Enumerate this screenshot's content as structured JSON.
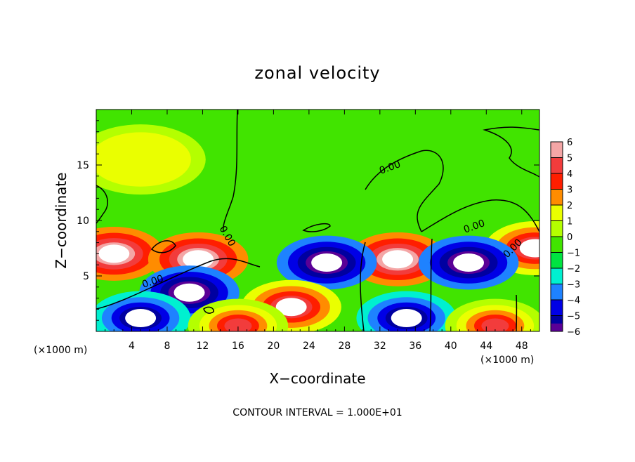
{
  "chart_data": {
    "type": "heatmap",
    "title": "zonal velocity",
    "xlabel": "X−coordinate",
    "ylabel": "Z−coordinate",
    "x_unit": "(×1000 m)",
    "y_unit": "(×1000 m)",
    "xlim": [
      0,
      50
    ],
    "ylim": [
      0,
      20
    ],
    "x_ticks": [
      4,
      8,
      12,
      16,
      20,
      24,
      28,
      32,
      36,
      40,
      44,
      48
    ],
    "y_ticks": [
      5,
      10,
      15
    ],
    "x_tick_labels": [
      "4",
      "8",
      "12",
      "16",
      "20",
      "24",
      "28",
      "32",
      "36",
      "40",
      "44",
      "48"
    ],
    "y_tick_labels": [
      "5",
      "10",
      "15"
    ],
    "colorbar": {
      "min": -6,
      "max": 6,
      "levels": [
        6,
        5,
        4,
        3,
        2,
        1,
        0,
        -1,
        -2,
        -3,
        -4,
        -5,
        -6
      ],
      "tick_labels": [
        "6",
        "5",
        "4",
        "3",
        "2",
        "1",
        "0",
        "−1",
        "−2",
        "−3",
        "−4",
        "−5",
        "−6"
      ],
      "colors": [
        "#f4a6a6",
        "#f23c3c",
        "#ff1e00",
        "#ff8c00",
        "#eaff00",
        "#b4ff00",
        "#41e400",
        "#00e441",
        "#00f0d0",
        "#1e82ff",
        "#0000e6",
        "#0000a0",
        "#5a0096"
      ]
    },
    "contour_labels": [
      "0.00",
      "0.00",
      "0.00",
      "0.00",
      "0.00"
    ],
    "contour_interval_text": "CONTOUR INTERVAL = 1.000E+01",
    "features": [
      {
        "kind": "positive",
        "x": 2,
        "z": 7.0,
        "value": 7
      },
      {
        "kind": "positive",
        "x": 11.5,
        "z": 6.5,
        "value": 7
      },
      {
        "kind": "positive",
        "x": 34,
        "z": 6.5,
        "value": 7
      },
      {
        "kind": "positive",
        "x": 49.5,
        "z": 7.5,
        "value": 6
      },
      {
        "kind": "negative",
        "x": 10.5,
        "z": 3.5,
        "value": -7
      },
      {
        "kind": "negative",
        "x": 26,
        "z": 6.2,
        "value": -7
      },
      {
        "kind": "negative",
        "x": 42,
        "z": 6.2,
        "value": -7
      },
      {
        "kind": "positive",
        "x": 22,
        "z": 2.2,
        "value": 6
      },
      {
        "kind": "negative",
        "x": 5,
        "z": 1.2,
        "value": -6
      },
      {
        "kind": "negative",
        "x": 35,
        "z": 1.2,
        "value": -6
      },
      {
        "kind": "positive",
        "x": 16,
        "z": 0.5,
        "value": 5
      },
      {
        "kind": "positive",
        "x": 45,
        "z": 0.5,
        "value": 5
      },
      {
        "kind": "positive",
        "x": 5,
        "z": 15.5,
        "value": 2
      }
    ]
  }
}
